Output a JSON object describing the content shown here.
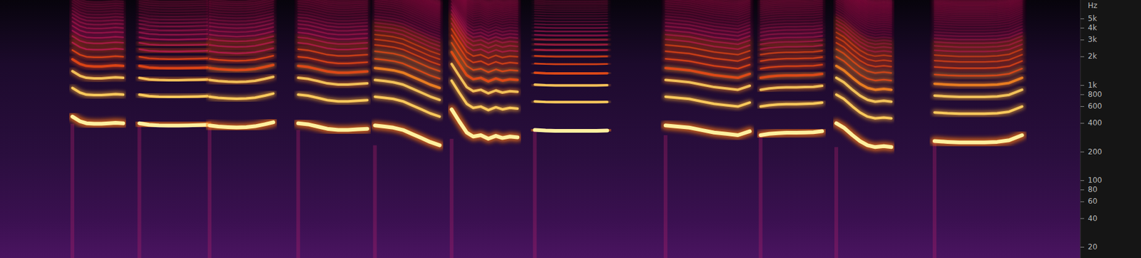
{
  "chart_data": {
    "type": "spectrogram",
    "y_label": "Hz",
    "log": "y",
    "tick_labels": "y",
    "xlim": [
      0,
      10
    ],
    "ylim": [
      15.4,
      7880
    ],
    "yticks": [
      {
        "value": 5000,
        "label": "5k"
      },
      {
        "value": 4000,
        "label": "4k"
      },
      {
        "value": 3000,
        "label": "3k"
      },
      {
        "value": 2000,
        "label": "2k"
      },
      {
        "value": 1000,
        "label": "1k"
      },
      800,
      600,
      400,
      200,
      100,
      80,
      60,
      40,
      20
    ],
    "series": [
      {
        "x": [
          0.67,
          0.74,
          0.8,
          0.87,
          0.94,
          1.01,
          1.07,
          1.14
        ],
        "values": [
          470,
          420,
          400,
          395,
          395,
          400,
          405,
          400
        ]
      },
      {
        "x": [
          1.29,
          1.38,
          1.47,
          1.56,
          1.65,
          1.74,
          1.83,
          1.92
        ],
        "values": [
          400,
          385,
          380,
          378,
          378,
          380,
          382,
          385
        ]
      },
      {
        "x": [
          1.94,
          2.02,
          2.11,
          2.19,
          2.28,
          2.36,
          2.45,
          2.53
        ],
        "values": [
          380,
          370,
          365,
          362,
          365,
          372,
          390,
          410
        ]
      },
      {
        "x": [
          2.76,
          2.85,
          2.94,
          3.03,
          3.13,
          3.22,
          3.31,
          3.4
        ],
        "values": [
          400,
          390,
          370,
          350,
          340,
          340,
          345,
          350
        ]
      },
      {
        "x": [
          3.47,
          3.56,
          3.64,
          3.73,
          3.81,
          3.9,
          3.98,
          4.07
        ],
        "values": [
          380,
          370,
          360,
          340,
          310,
          280,
          255,
          235
        ]
      },
      {
        "x": [
          4.18,
          4.25,
          4.32,
          4.38,
          4.45,
          4.52,
          4.59,
          4.65,
          4.72,
          4.79
        ],
        "values": [
          560,
          420,
          320,
          290,
          300,
          275,
          295,
          280,
          290,
          285
        ]
      },
      {
        "x": [
          4.95,
          5.05,
          5.14,
          5.24,
          5.33,
          5.43,
          5.52,
          5.62
        ],
        "values": [
          340,
          335,
          333,
          333,
          333,
          333,
          333,
          335
        ]
      },
      {
        "x": [
          6.16,
          6.27,
          6.38,
          6.49,
          6.61,
          6.72,
          6.83,
          6.94
        ],
        "values": [
          380,
          370,
          360,
          340,
          320,
          310,
          300,
          330
        ]
      },
      {
        "x": [
          7.04,
          7.12,
          7.2,
          7.28,
          7.37,
          7.45,
          7.53,
          7.61
        ],
        "values": [
          300,
          310,
          315,
          318,
          318,
          320,
          322,
          330
        ]
      },
      {
        "x": [
          7.74,
          7.81,
          7.89,
          7.96,
          8.03,
          8.1,
          8.18,
          8.25
        ],
        "values": [
          400,
          360,
          300,
          260,
          235,
          225,
          230,
          225
        ]
      },
      {
        "x": [
          8.65,
          8.77,
          8.88,
          9.0,
          9.11,
          9.23,
          9.34,
          9.46
        ],
        "values": [
          260,
          255,
          252,
          252,
          252,
          255,
          265,
          300
        ]
      }
    ]
  }
}
